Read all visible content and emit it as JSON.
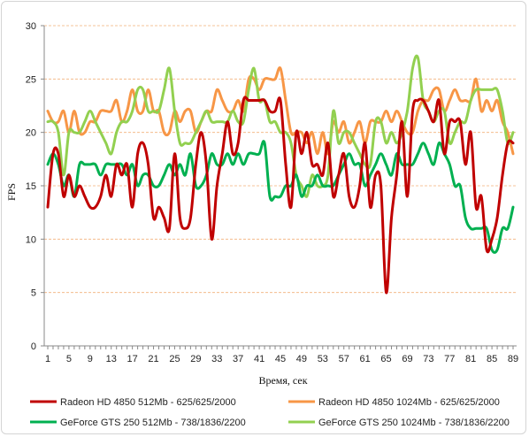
{
  "chart_data": {
    "type": "line",
    "title": "",
    "xlabel": "Время, сек",
    "ylabel": "FPS",
    "ylim": [
      0,
      30
    ],
    "yticks": [
      0,
      5,
      10,
      15,
      20,
      25,
      30
    ],
    "xlim": [
      1,
      89
    ],
    "xticks": [
      1,
      5,
      9,
      13,
      17,
      21,
      25,
      29,
      33,
      37,
      41,
      45,
      49,
      53,
      57,
      61,
      65,
      69,
      73,
      77,
      81,
      85,
      89
    ],
    "grid": "horizontal dashed at y-ticks",
    "legend_position": "bottom",
    "series": [
      {
        "name": "Radeon HD 4850 512Mb - 625/625/2000",
        "color": "#c00000",
        "values": [
          13,
          18,
          18,
          14,
          16,
          14,
          15,
          14,
          13,
          13,
          14,
          16,
          14,
          17,
          16,
          17,
          13,
          18,
          19,
          17,
          12,
          13,
          12,
          11,
          18,
          12,
          11,
          12,
          17,
          20,
          17,
          10,
          15,
          18,
          21,
          18,
          19,
          23,
          23,
          23,
          23,
          23,
          22,
          22,
          23,
          17,
          13,
          20,
          18,
          20,
          17,
          17,
          16,
          19,
          14,
          16,
          18,
          14,
          13,
          15,
          19,
          13,
          16,
          15,
          5,
          12,
          16,
          21,
          14,
          22,
          23,
          23,
          22,
          21,
          23,
          18,
          21,
          21,
          21,
          17,
          20,
          13,
          14,
          9,
          10,
          12,
          16,
          19,
          19
        ]
      },
      {
        "name": "Radeon HD 4850 1024Mb - 625/625/2000",
        "color": "#f79646",
        "values": [
          22,
          21,
          21,
          22,
          20,
          22,
          20,
          20,
          21,
          21,
          22,
          22,
          22,
          23,
          21,
          22,
          24,
          22,
          22,
          24,
          22,
          22,
          20,
          20,
          22,
          21,
          22,
          22,
          20,
          21,
          22,
          22,
          24,
          23,
          22,
          22,
          23,
          22,
          25,
          25,
          24,
          25,
          25,
          25,
          26,
          23,
          20,
          20,
          20,
          19,
          20,
          18,
          20,
          18,
          21,
          20,
          21,
          19,
          20,
          21,
          19,
          21,
          21,
          21,
          22,
          21,
          22,
          21,
          20,
          20,
          22,
          23,
          23,
          24,
          24,
          22,
          23,
          24,
          23,
          23,
          23,
          25,
          22,
          23,
          22,
          23,
          21,
          20,
          18
        ]
      },
      {
        "name": "GeForce GTS 250 512Mb - 738/1836/2200",
        "color": "#00b050",
        "values": [
          17,
          18,
          17,
          15,
          16,
          14,
          17,
          17,
          17,
          17,
          16,
          17,
          17,
          17,
          17,
          16,
          17,
          15,
          16,
          16,
          15,
          15,
          16,
          17,
          16,
          17,
          16,
          18,
          15,
          15,
          16,
          18,
          17,
          17,
          18,
          17,
          18,
          17,
          18,
          18,
          18,
          19,
          14,
          14,
          14,
          15,
          15,
          16,
          14,
          15,
          15,
          16,
          15,
          15,
          15,
          16,
          17,
          18,
          17,
          17,
          15,
          16,
          17,
          18,
          17,
          16,
          18,
          17,
          17,
          17,
          18,
          19,
          18,
          17,
          19,
          18,
          17,
          15,
          15,
          12,
          11,
          11,
          11,
          11,
          9,
          9,
          11,
          11,
          13
        ]
      },
      {
        "name": "GeForce GTS 250 1024Mb - 738/1836/2200",
        "color": "#92d050",
        "values": [
          21,
          21,
          20,
          16,
          20,
          20,
          20,
          21,
          22,
          21,
          20,
          19,
          18,
          20,
          21,
          21,
          22,
          24,
          24,
          22,
          22,
          22,
          24,
          26,
          22,
          19,
          19,
          19,
          20,
          21,
          22,
          21,
          21,
          21,
          21,
          22,
          21,
          21,
          24,
          26,
          23,
          23,
          21,
          21,
          20,
          20,
          19,
          16,
          15,
          14,
          16,
          15,
          15,
          16,
          22,
          19,
          20,
          20,
          19,
          18,
          17,
          17,
          21,
          21,
          19,
          20,
          19,
          20,
          22,
          26,
          27,
          23,
          22,
          21,
          22,
          22,
          19,
          20,
          21,
          21,
          23,
          24,
          24,
          24,
          24,
          24,
          22,
          19,
          20
        ]
      }
    ]
  }
}
